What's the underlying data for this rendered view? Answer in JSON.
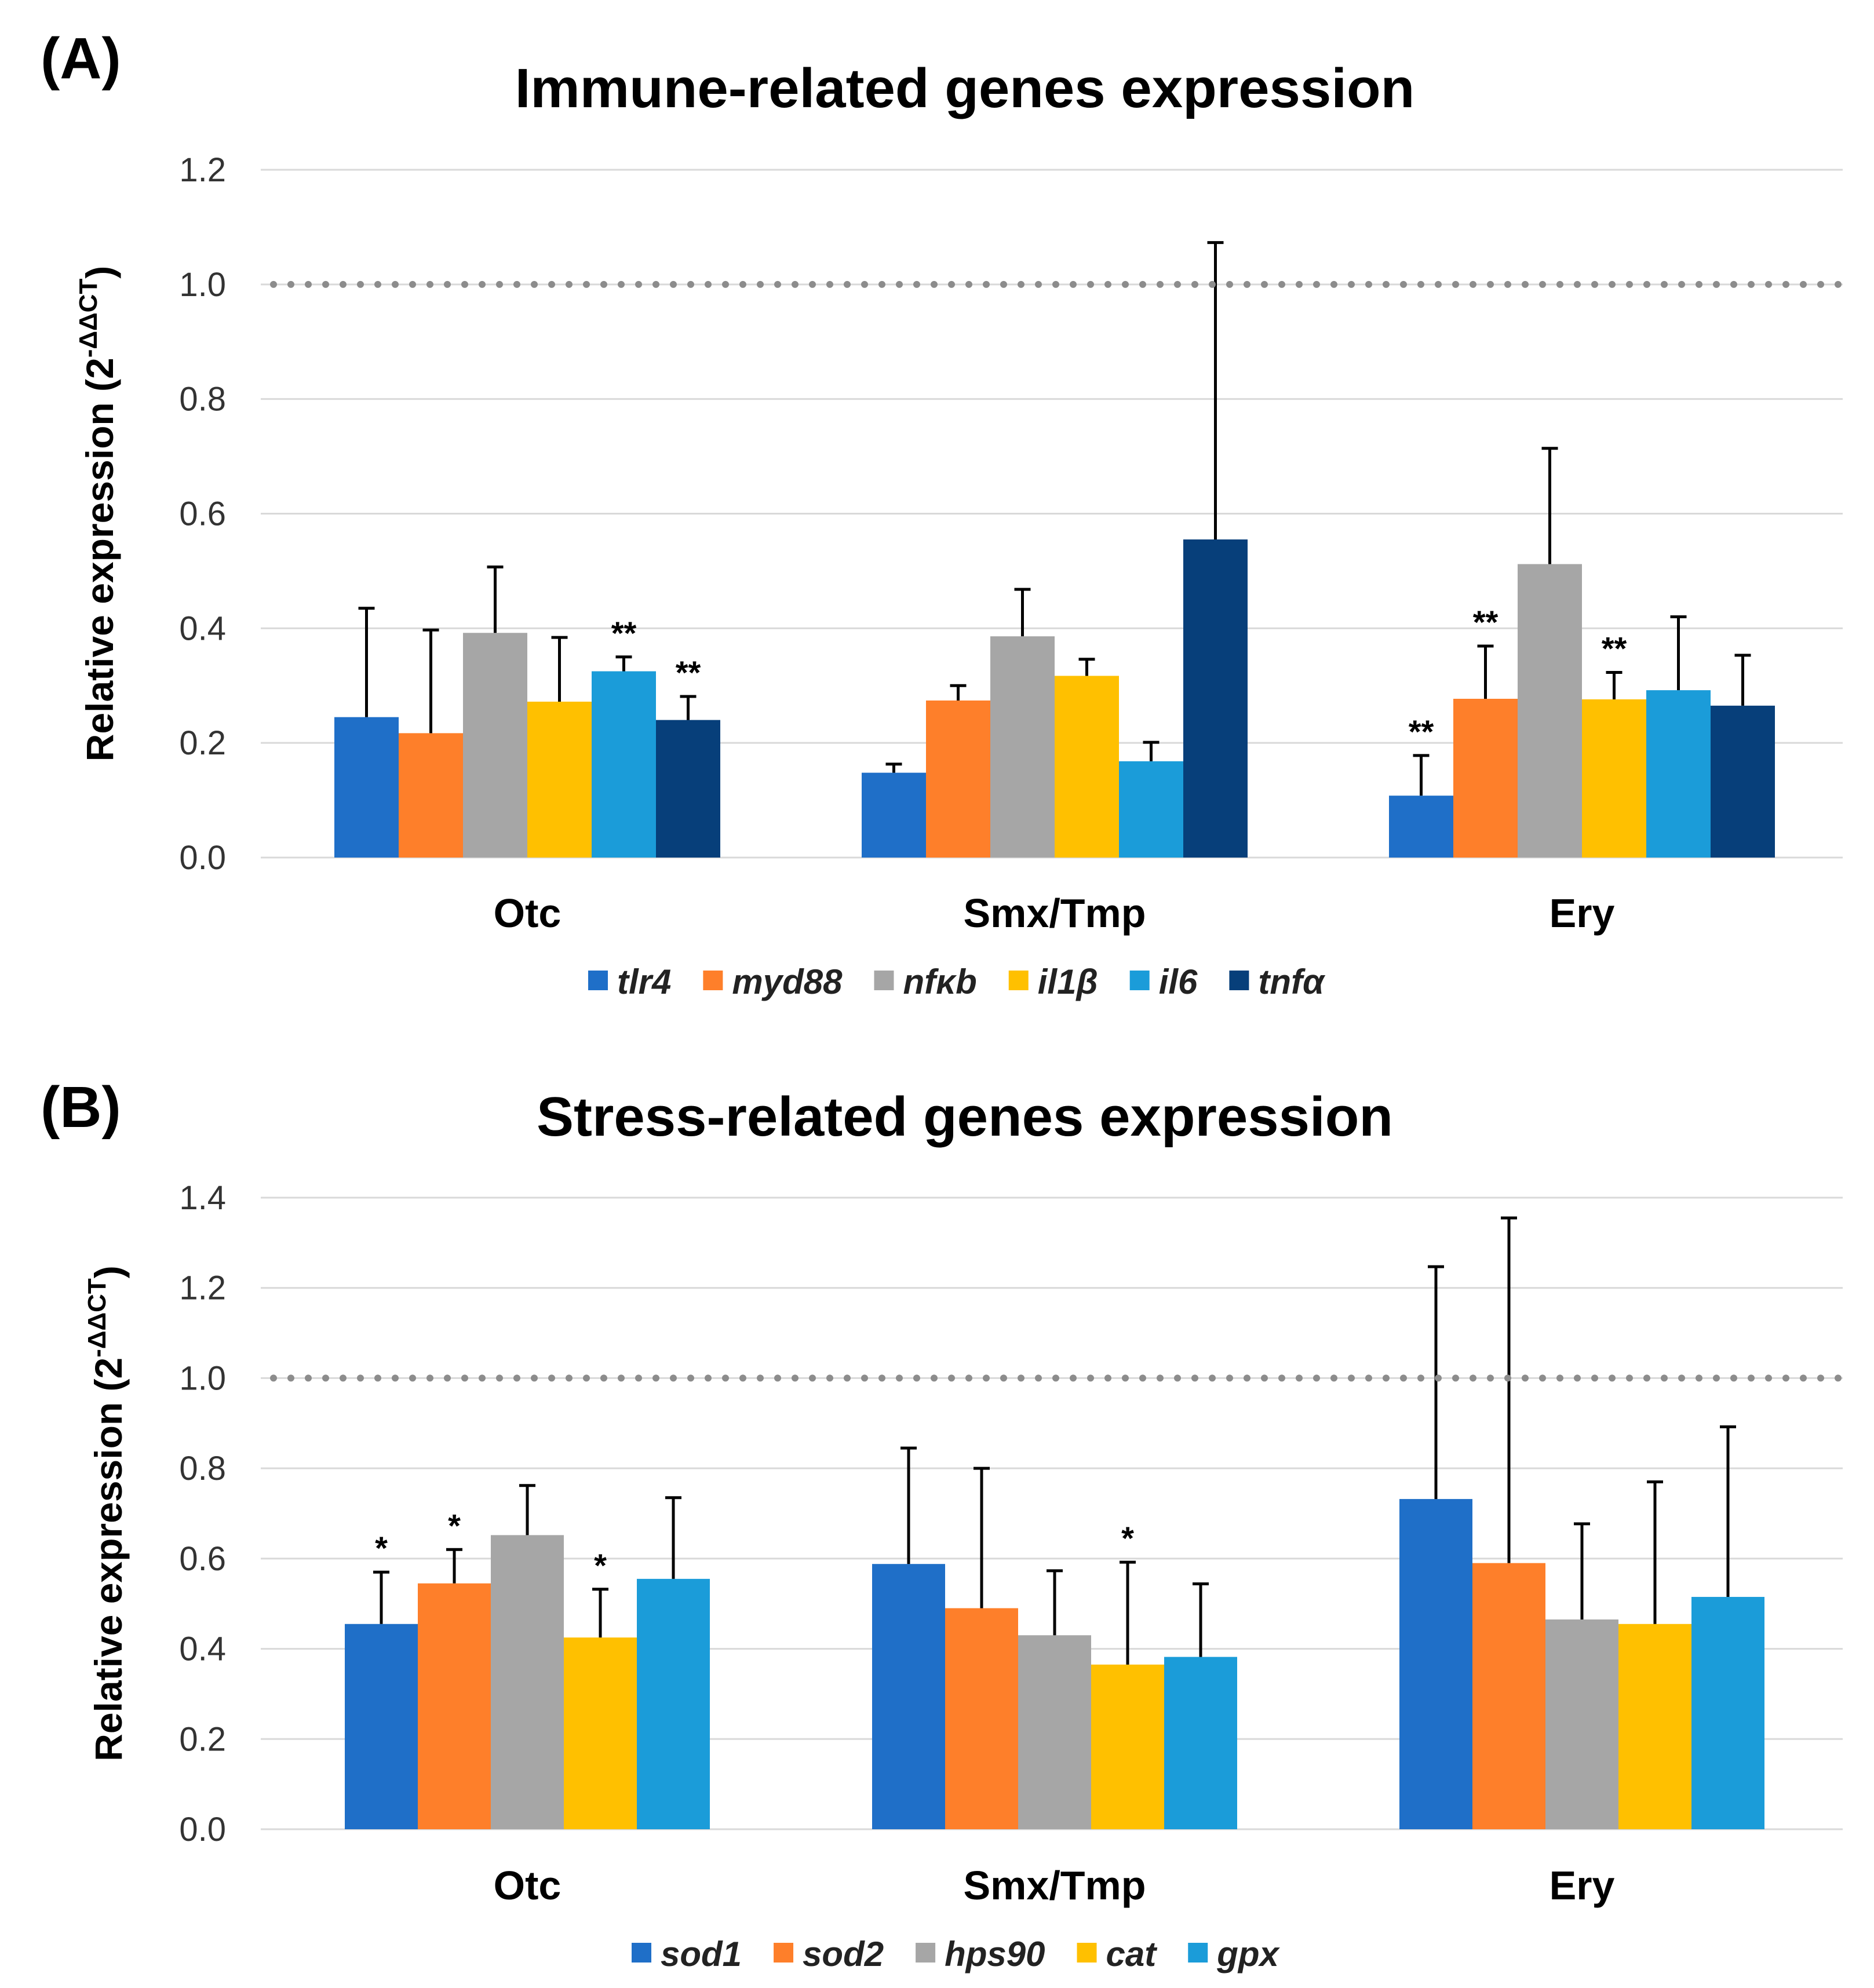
{
  "chart_data": [
    {
      "panel_label": "(A)",
      "type": "bar",
      "title": "Immune-related genes expression",
      "ylabel": "Relative expression (2",
      "ylabel_superscript": "-ΔΔCT",
      "ylabel_close": ")",
      "ylim": [
        0,
        1.2
      ],
      "yticks": [
        "0.0",
        "0.2",
        "0.4",
        "0.6",
        "0.8",
        "1.0",
        "1.2"
      ],
      "reference_line": 1.0,
      "categories": [
        "Otc",
        "Smx/Tmp",
        "Ery"
      ],
      "series": [
        {
          "name": "tlr4",
          "color": "#1f6fc8",
          "values": [
            0.245,
            0.148,
            0.108
          ],
          "errors": [
            0.19,
            0.015,
            0.07
          ],
          "sig": [
            "",
            "",
            "**"
          ]
        },
        {
          "name": "myd88",
          "color": "#fe7f2a",
          "values": [
            0.217,
            0.274,
            0.277
          ],
          "errors": [
            0.18,
            0.026,
            0.092
          ],
          "sig": [
            "",
            "",
            "**"
          ]
        },
        {
          "name": "nfκb",
          "color": "#a6a6a6",
          "values": [
            0.392,
            0.386,
            0.512
          ],
          "errors": [
            0.115,
            0.082,
            0.202
          ],
          "sig": [
            "",
            "",
            ""
          ]
        },
        {
          "name": "il1β",
          "color": "#ffc000",
          "values": [
            0.272,
            0.317,
            0.276
          ],
          "errors": [
            0.112,
            0.029,
            0.047
          ],
          "sig": [
            "",
            "",
            "**"
          ]
        },
        {
          "name": "il6",
          "color": "#1b9cd9",
          "values": [
            0.325,
            0.168,
            0.292
          ],
          "errors": [
            0.025,
            0.033,
            0.128
          ],
          "sig": [
            "**",
            "",
            ""
          ]
        },
        {
          "name": "tnfα",
          "color": "#073f7a",
          "values": [
            0.24,
            0.555,
            0.265
          ],
          "errors": [
            0.041,
            0.518,
            0.088
          ],
          "sig": [
            "**",
            "",
            ""
          ]
        }
      ]
    },
    {
      "panel_label": "(B)",
      "type": "bar",
      "title": "Stress-related genes expression",
      "ylabel": "Relative expression (2",
      "ylabel_superscript": "-ΔΔCT",
      "ylabel_close": ")",
      "ylim": [
        0,
        1.4
      ],
      "yticks": [
        "0.0",
        "0.2",
        "0.4",
        "0.6",
        "0.8",
        "1.0",
        "1.2",
        "1.4"
      ],
      "reference_line": 1.0,
      "categories": [
        "Otc",
        "Smx/Tmp",
        "Ery"
      ],
      "series": [
        {
          "name": "sod1",
          "color": "#1f6fc8",
          "values": [
            0.455,
            0.588,
            0.732
          ],
          "errors": [
            0.115,
            0.257,
            0.515
          ],
          "sig": [
            "*",
            "",
            ""
          ]
        },
        {
          "name": "sod2",
          "color": "#fe7f2a",
          "values": [
            0.545,
            0.49,
            0.59
          ],
          "errors": [
            0.075,
            0.31,
            0.765
          ],
          "sig": [
            "*",
            "",
            ""
          ]
        },
        {
          "name": "hps90",
          "color": "#a6a6a6",
          "values": [
            0.652,
            0.43,
            0.465
          ],
          "errors": [
            0.11,
            0.143,
            0.212
          ],
          "sig": [
            "",
            "",
            ""
          ]
        },
        {
          "name": "cat",
          "color": "#ffc000",
          "values": [
            0.425,
            0.365,
            0.455
          ],
          "errors": [
            0.107,
            0.227,
            0.315
          ],
          "sig": [
            "*",
            "*",
            ""
          ]
        },
        {
          "name": "gpx",
          "color": "#1b9cd9",
          "values": [
            0.555,
            0.382,
            0.515
          ],
          "errors": [
            0.18,
            0.162,
            0.377
          ],
          "sig": [
            "",
            "",
            ""
          ]
        }
      ]
    }
  ]
}
